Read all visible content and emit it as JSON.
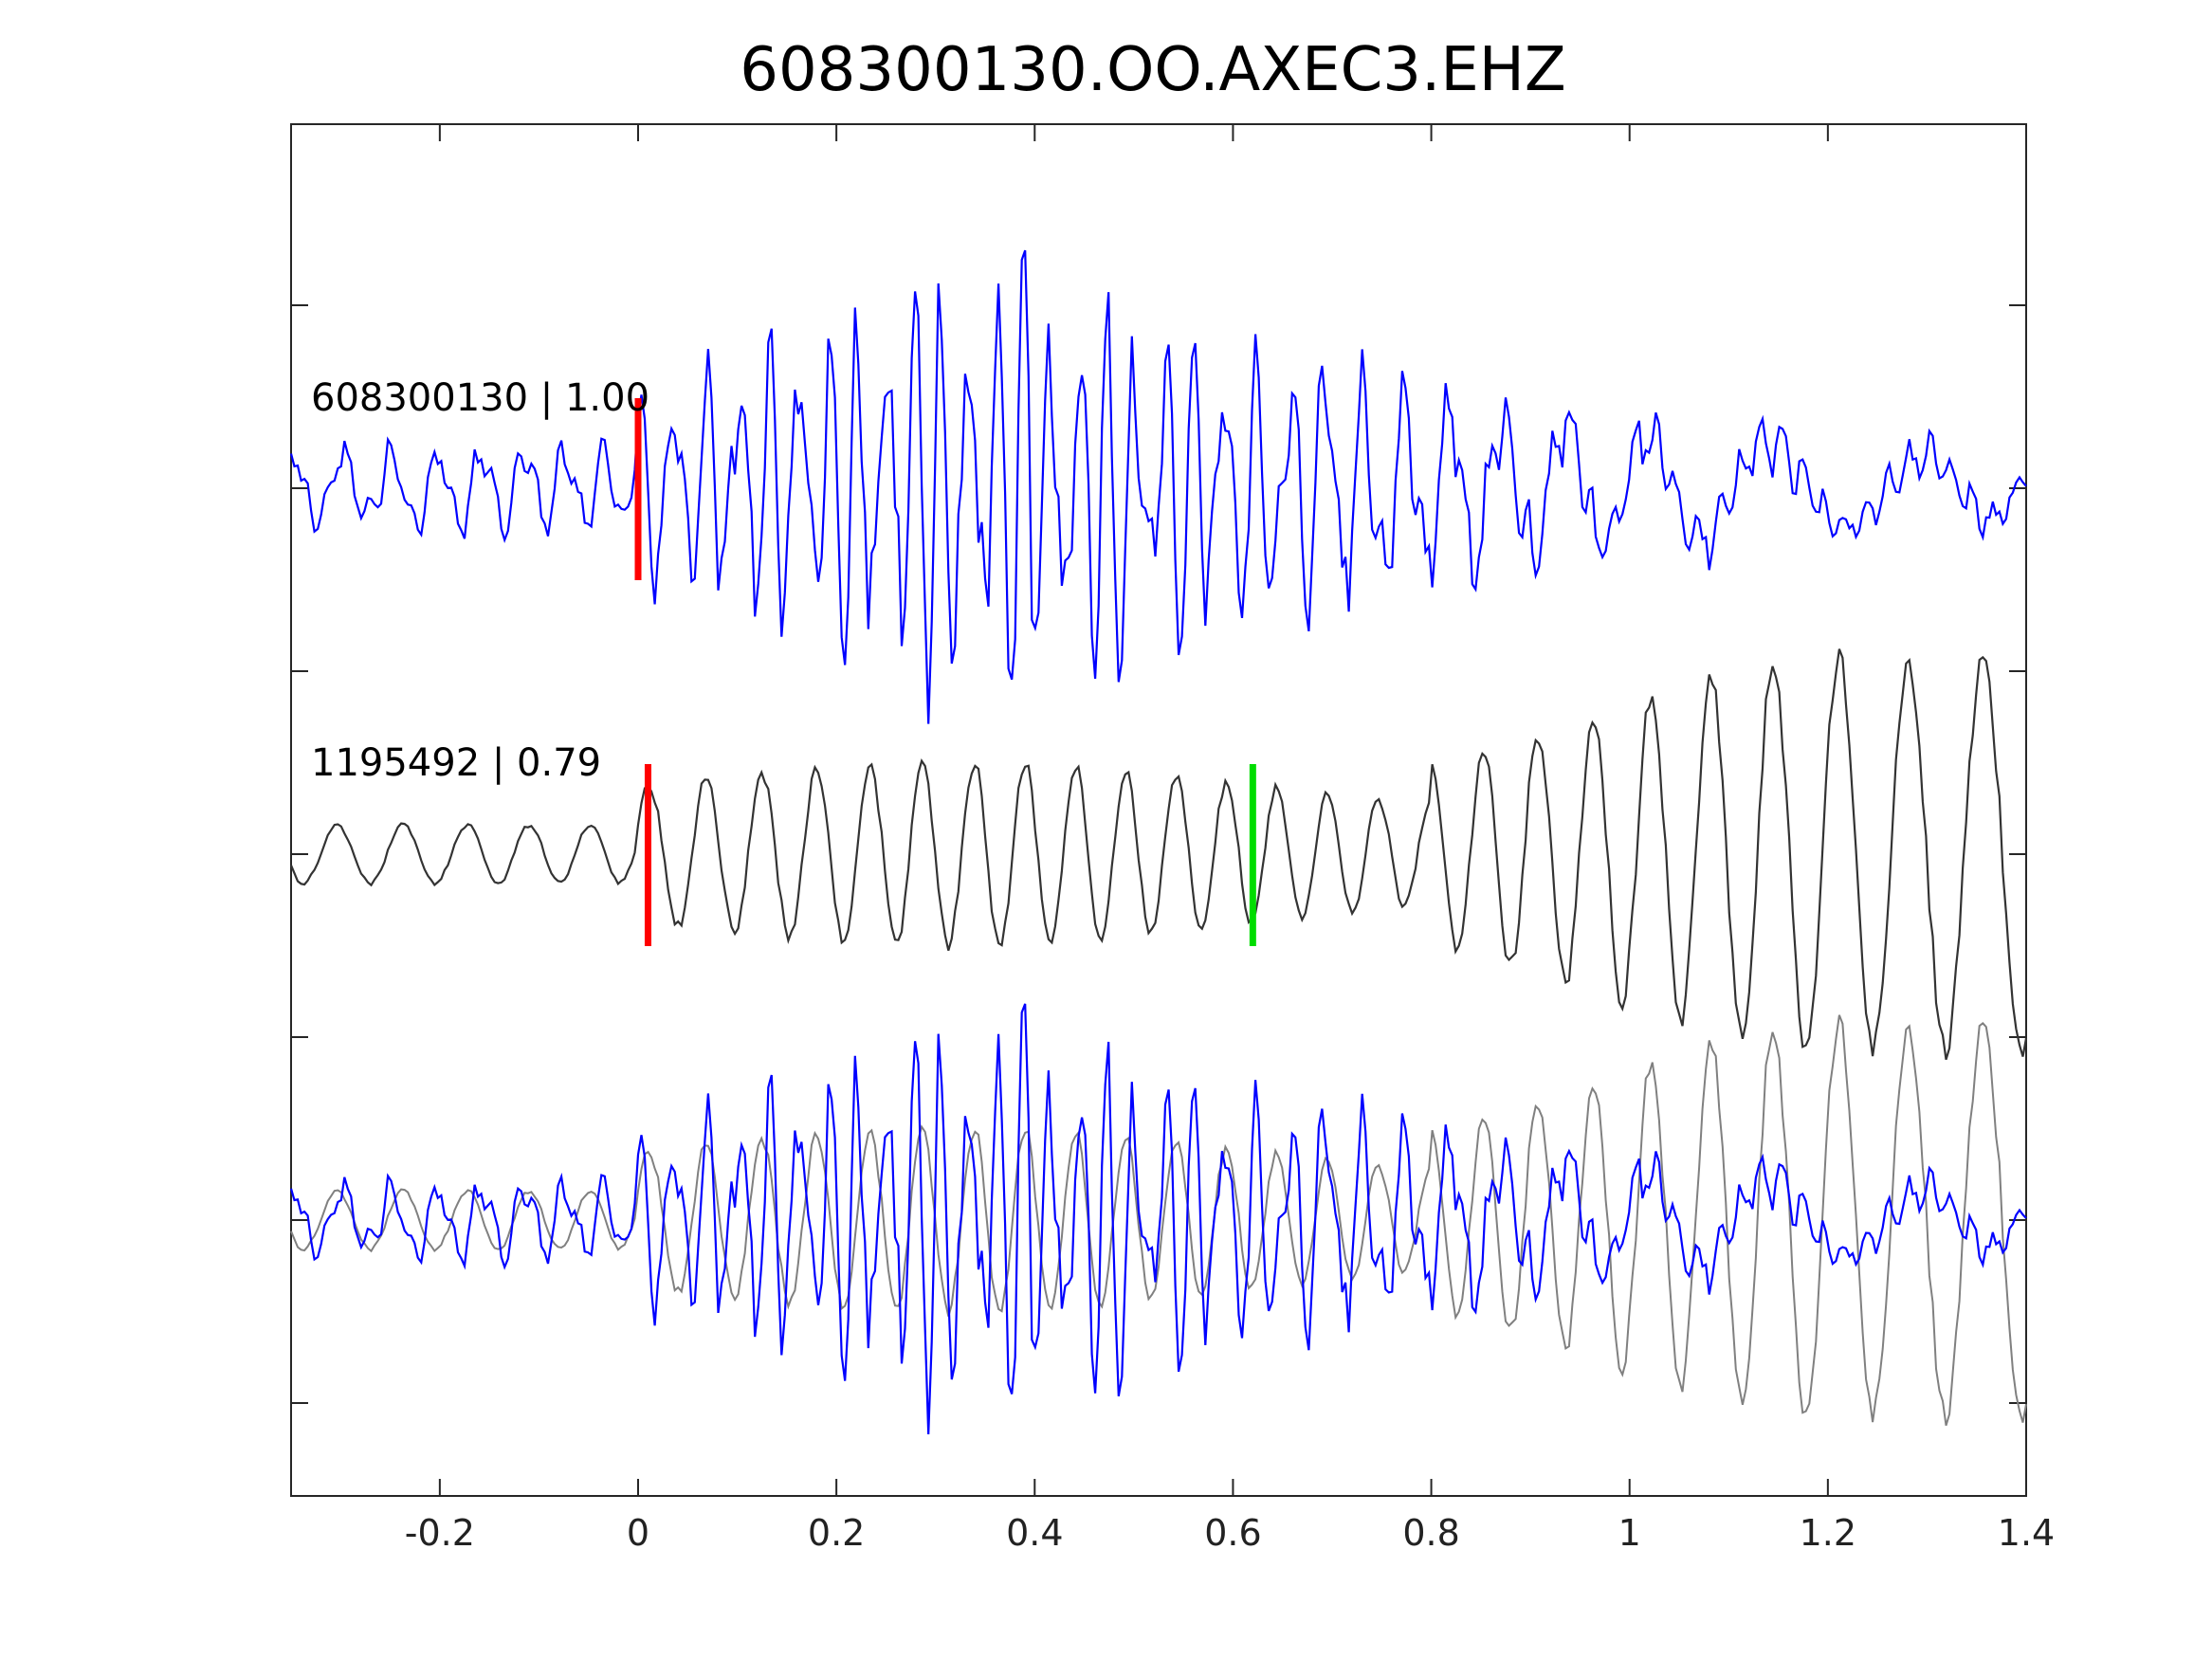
{
  "chart_data": {
    "type": "line",
    "title": "608300130.OO.AXEC3.EHZ",
    "xlabel": "",
    "ylabel": "",
    "xlim": [
      -0.35,
      1.4
    ],
    "x_ticks": [
      -0.2,
      0,
      0.2,
      0.4,
      0.6,
      0.8,
      1,
      1.2,
      1.4
    ],
    "x_tick_labels": [
      "-0.2",
      "0",
      "0.2",
      "0.4",
      "0.6",
      "0.8",
      "1",
      "1.2",
      "1.4"
    ],
    "grid": false,
    "legend": "none",
    "traces": [
      {
        "id": "master",
        "label": "608300130 | 1.00",
        "color": "#0000ff",
        "pick_time": 0.0,
        "pick_color": "#ff0000"
      },
      {
        "id": "neighbor",
        "label": "1195492 | 0.79",
        "color": "#333333",
        "pick_time": 0.01,
        "pick_color": "#ff0000",
        "secondary_pick_time": 0.62,
        "secondary_pick_color": "#00dd00"
      },
      {
        "id": "overlay",
        "label": "",
        "components": [
          "master",
          "neighbor"
        ],
        "colors": [
          "#0000ff",
          "#808080"
        ]
      }
    ]
  },
  "colors": {
    "axes": "#262626",
    "master_trace": "#0000ff",
    "neighbor_trace": "#333333",
    "overlay_neighbor": "#808080",
    "p_pick": "#ff0000",
    "s_pick": "#00dd00"
  }
}
